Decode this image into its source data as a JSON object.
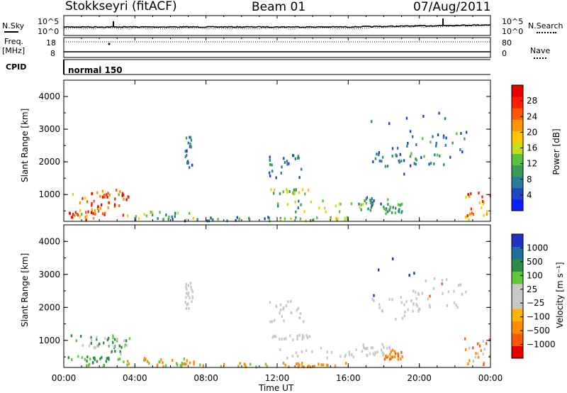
{
  "header": {
    "station": "Stokkseyri (fitACF)",
    "beam": "Beam 01",
    "date": "07/Aug/2011"
  },
  "top_panels": {
    "nsky_label": "N.Sky",
    "nsearch_label": "N.Search",
    "noise_ticks_left": [
      "10^5",
      "10^0"
    ],
    "noise_ticks_right": [
      "10^5",
      "10^0"
    ],
    "freq_label": "Freq.",
    "freq_unit": "[MHz]",
    "freq_ticks": [
      "18",
      "8"
    ],
    "nave_label": "Nave",
    "nave_ticks": [
      "80",
      "0"
    ],
    "cpid_label": "CPID",
    "cpid_value": "normal 150"
  },
  "chart_data": [
    {
      "type": "heatmap",
      "name": "power-panel",
      "ylabel": "Slant Range [km]",
      "xlabel": "Time UT",
      "ylim": [
        180,
        4500
      ],
      "yticks": [
        "1000",
        "2000",
        "3000",
        "4000"
      ],
      "xticks": [
        "00:00",
        "04:00",
        "08:00",
        "12:00",
        "16:00",
        "20:00",
        "00:00"
      ],
      "colorbar": {
        "label": "Power [dB]",
        "ticks": [
          "4",
          "8",
          "12",
          "16",
          "20",
          "24",
          "28"
        ],
        "colors": [
          "#0a1eff",
          "#1e46c8",
          "#2a7d9a",
          "#3b9a5a",
          "#5cc23c",
          "#c8dc1e",
          "#ffc800",
          "#ff9600",
          "#ff5a00",
          "#ff1e00",
          "#e60000"
        ]
      }
    },
    {
      "type": "heatmap",
      "name": "velocity-panel",
      "ylabel": "Slant Range [km]",
      "xlabel": "Time UT",
      "ylim": [
        180,
        4500
      ],
      "yticks": [
        "1000",
        "2000",
        "3000",
        "4000"
      ],
      "xticks": [
        "00:00",
        "04:00",
        "08:00",
        "12:00",
        "16:00",
        "20:00",
        "00:00"
      ],
      "colorbar": {
        "label": "Velocity  [m s⁻¹]",
        "ticks": [
          "1000",
          "500",
          "100",
          "25",
          "−25",
          "−100",
          "−500",
          "−1000"
        ],
        "colors": [
          "#1e32c8",
          "#1e6ea0",
          "#2d8c46",
          "#64c83c",
          "#c8c8c8",
          "#c8c8c8",
          "#ffb400",
          "#ff8c00",
          "#ff5a00",
          "#e60000"
        ]
      }
    }
  ],
  "x_axis_label": "Time UT"
}
